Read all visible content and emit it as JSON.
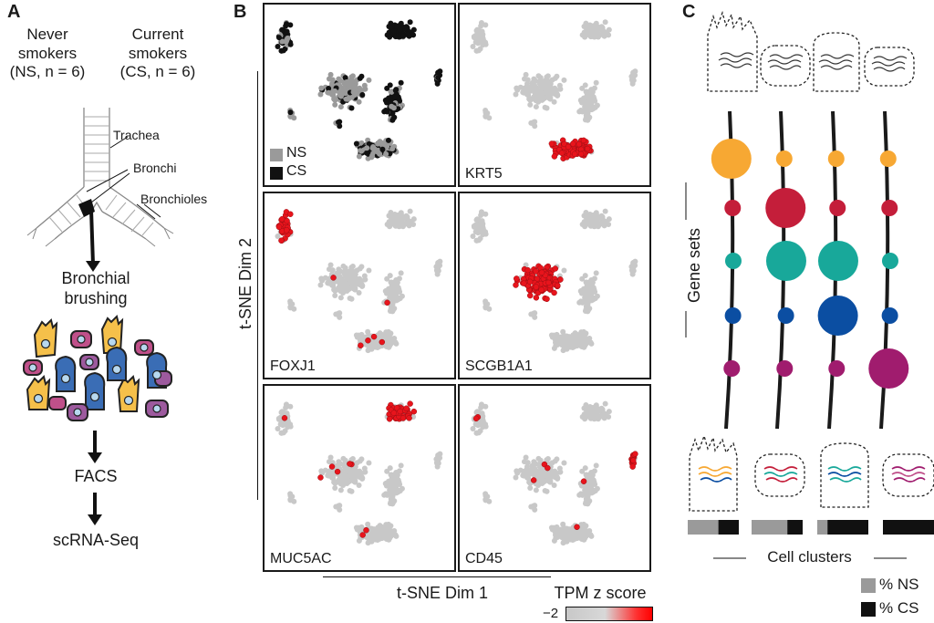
{
  "panel_a": {
    "letter": "A",
    "never": "Never",
    "smokers_ns": "smokers",
    "ns_group": "(NS, n = 6)",
    "current": "Current",
    "smokers_cs": "smokers",
    "cs_group": "(CS, n = 6)",
    "trachea": "Trachea",
    "bronchi": "Bronchi",
    "bronchioles": "Bronchioles",
    "step_bronchial": "Bronchial",
    "step_brushing": "brushing",
    "step_facs": "FACS",
    "step_seq": "scRNA-Seq"
  },
  "panel_b": {
    "letter": "B",
    "y_axis": "t-SNE Dim 2",
    "x_axis": "t-SNE Dim 1",
    "colorbar_title": "TPM z score",
    "colorbar_min": "−2",
    "legend_ns": "NS",
    "legend_cs": "CS",
    "subplots": [
      {
        "label": "",
        "highlight": "smoking"
      },
      {
        "label": "KRT5",
        "highlight": "basal"
      },
      {
        "label": "FOXJ1",
        "highlight": "ciliated"
      },
      {
        "label": "SCGB1A1",
        "highlight": "secretory"
      },
      {
        "label": "MUC5AC",
        "highlight": "goblet"
      },
      {
        "label": "CD45",
        "highlight": "immune"
      }
    ],
    "colors": {
      "ns": "#9a9a9a",
      "cs": "#111111",
      "bg_point": "#c8c8c8",
      "expr": "#e8141c"
    }
  },
  "panel_c": {
    "letter": "C",
    "gene_sets": "Gene sets",
    "cell_clusters": "Cell clusters",
    "legend_ns": "% NS",
    "legend_cs": "% CS",
    "colors": [
      "#f7a833",
      "#c41e3a",
      "#18a89a",
      "#0b4ea2",
      "#a01c6e"
    ],
    "dot_levels": [
      [
        1,
        0,
        0,
        0,
        0
      ],
      [
        0,
        1,
        1,
        0,
        0
      ],
      [
        0,
        0,
        1,
        1,
        0
      ],
      [
        0,
        0,
        0,
        0,
        1
      ]
    ],
    "ns_fraction": [
      0.6,
      0.7,
      0.2,
      0.0
    ]
  }
}
